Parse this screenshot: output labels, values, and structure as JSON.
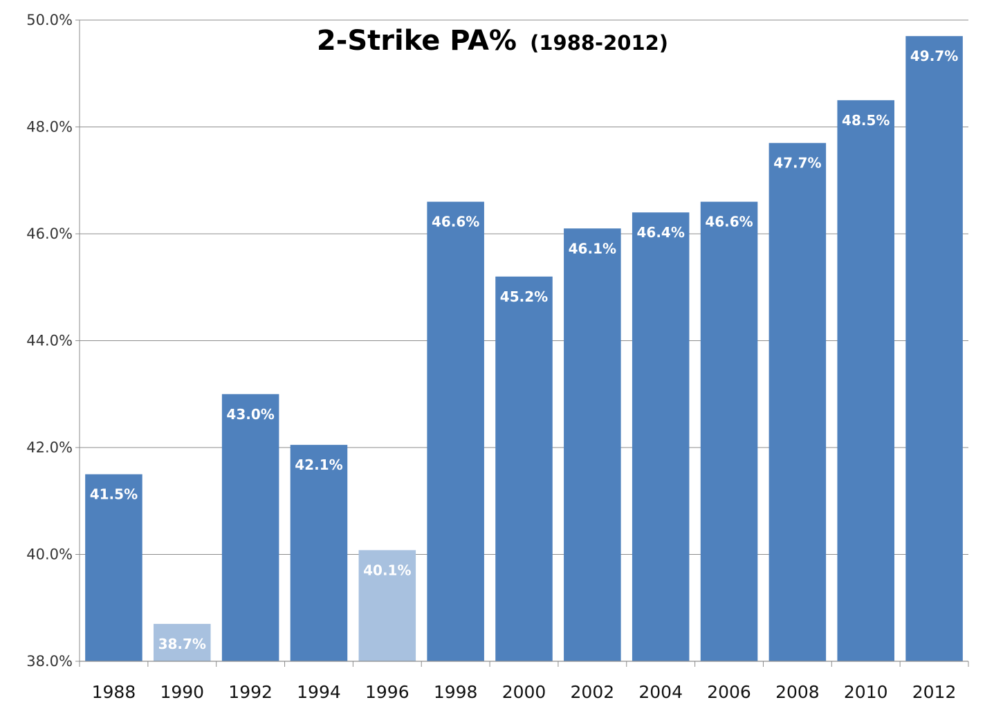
{
  "chart_data": {
    "type": "bar",
    "title": "2-Strike PA%",
    "subtitle": "(1988-2012)",
    "xlabel": "",
    "ylabel": "",
    "categories": [
      "1988",
      "1990",
      "1992",
      "1994",
      "1996",
      "1998",
      "2000",
      "2002",
      "2004",
      "2006",
      "2008",
      "2010",
      "2012"
    ],
    "values": [
      41.5,
      38.7,
      43.0,
      42.05,
      40.08,
      46.6,
      45.2,
      46.1,
      46.4,
      46.6,
      47.7,
      48.5,
      49.7
    ],
    "data_labels": [
      "41.5%",
      "38.7%",
      "43.0%",
      "42.1%",
      "40.1%",
      "46.6%",
      "45.2%",
      "46.1%",
      "46.4%",
      "46.6%",
      "47.7%",
      "48.5%",
      "49.7%"
    ],
    "highlight": [
      false,
      true,
      false,
      false,
      true,
      false,
      false,
      false,
      false,
      false,
      false,
      false,
      false
    ],
    "ylim": [
      38,
      50
    ],
    "yticks": [
      "38.0%",
      "40.0%",
      "42.0%",
      "44.0%",
      "46.0%",
      "48.0%",
      "50.0%"
    ],
    "ytick_values": [
      38,
      40,
      42,
      44,
      46,
      48,
      50
    ],
    "grid": true,
    "legend": "none",
    "colors": {
      "bar": "#4F81BD",
      "bar_light": "#A8C1DF",
      "grid": "#8C8C8C",
      "axis": "#8C8C8C",
      "label_text": "#FFFFFF"
    }
  }
}
